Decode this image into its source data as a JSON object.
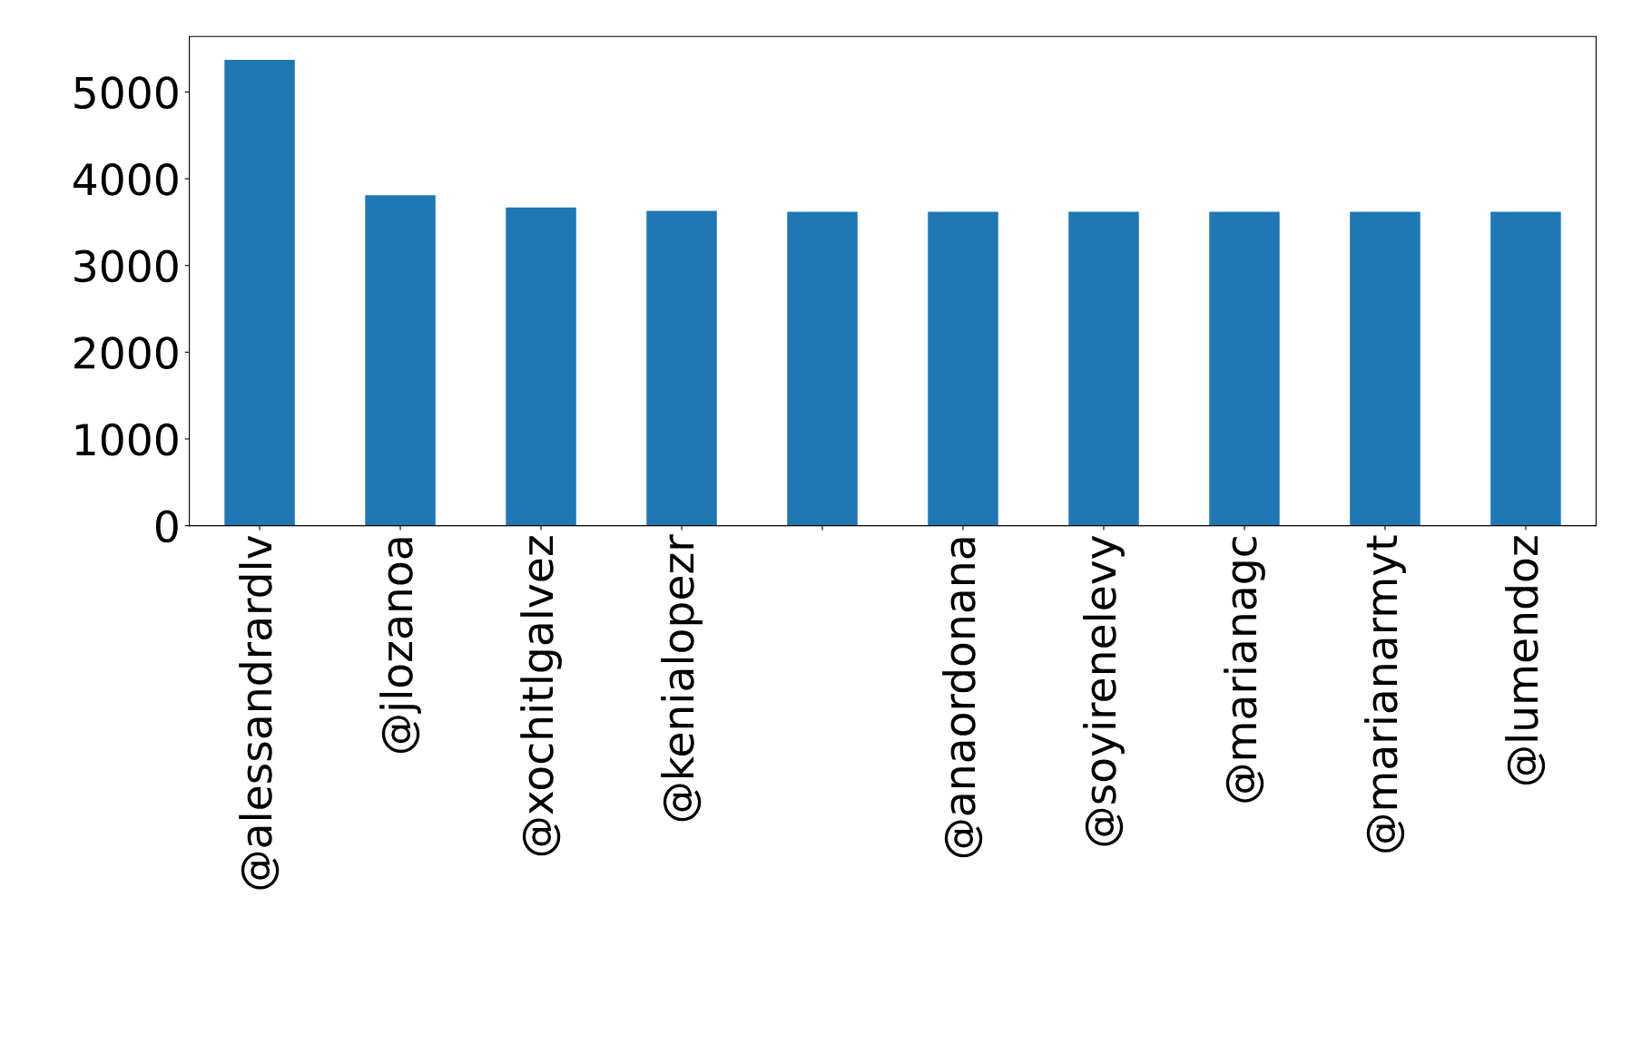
{
  "chart_data": {
    "type": "bar",
    "categories": [
      "@alessandrardlv",
      "@jlozanoa",
      "@xochitlgalvez",
      "@kenialopezr",
      null,
      "@anaordonana",
      "@soyirenelevy",
      "@marianagc",
      "@marianarmyt",
      "@lumendoz"
    ],
    "values": [
      5370,
      3810,
      3670,
      3630,
      3620,
      3620,
      3620,
      3620,
      3620,
      3620
    ],
    "color": "#1f77b4",
    "ylim": [
      0,
      5640
    ],
    "yticks": [
      0,
      1000,
      2000,
      3000,
      4000,
      5000
    ],
    "grid": false,
    "legend": false
  }
}
